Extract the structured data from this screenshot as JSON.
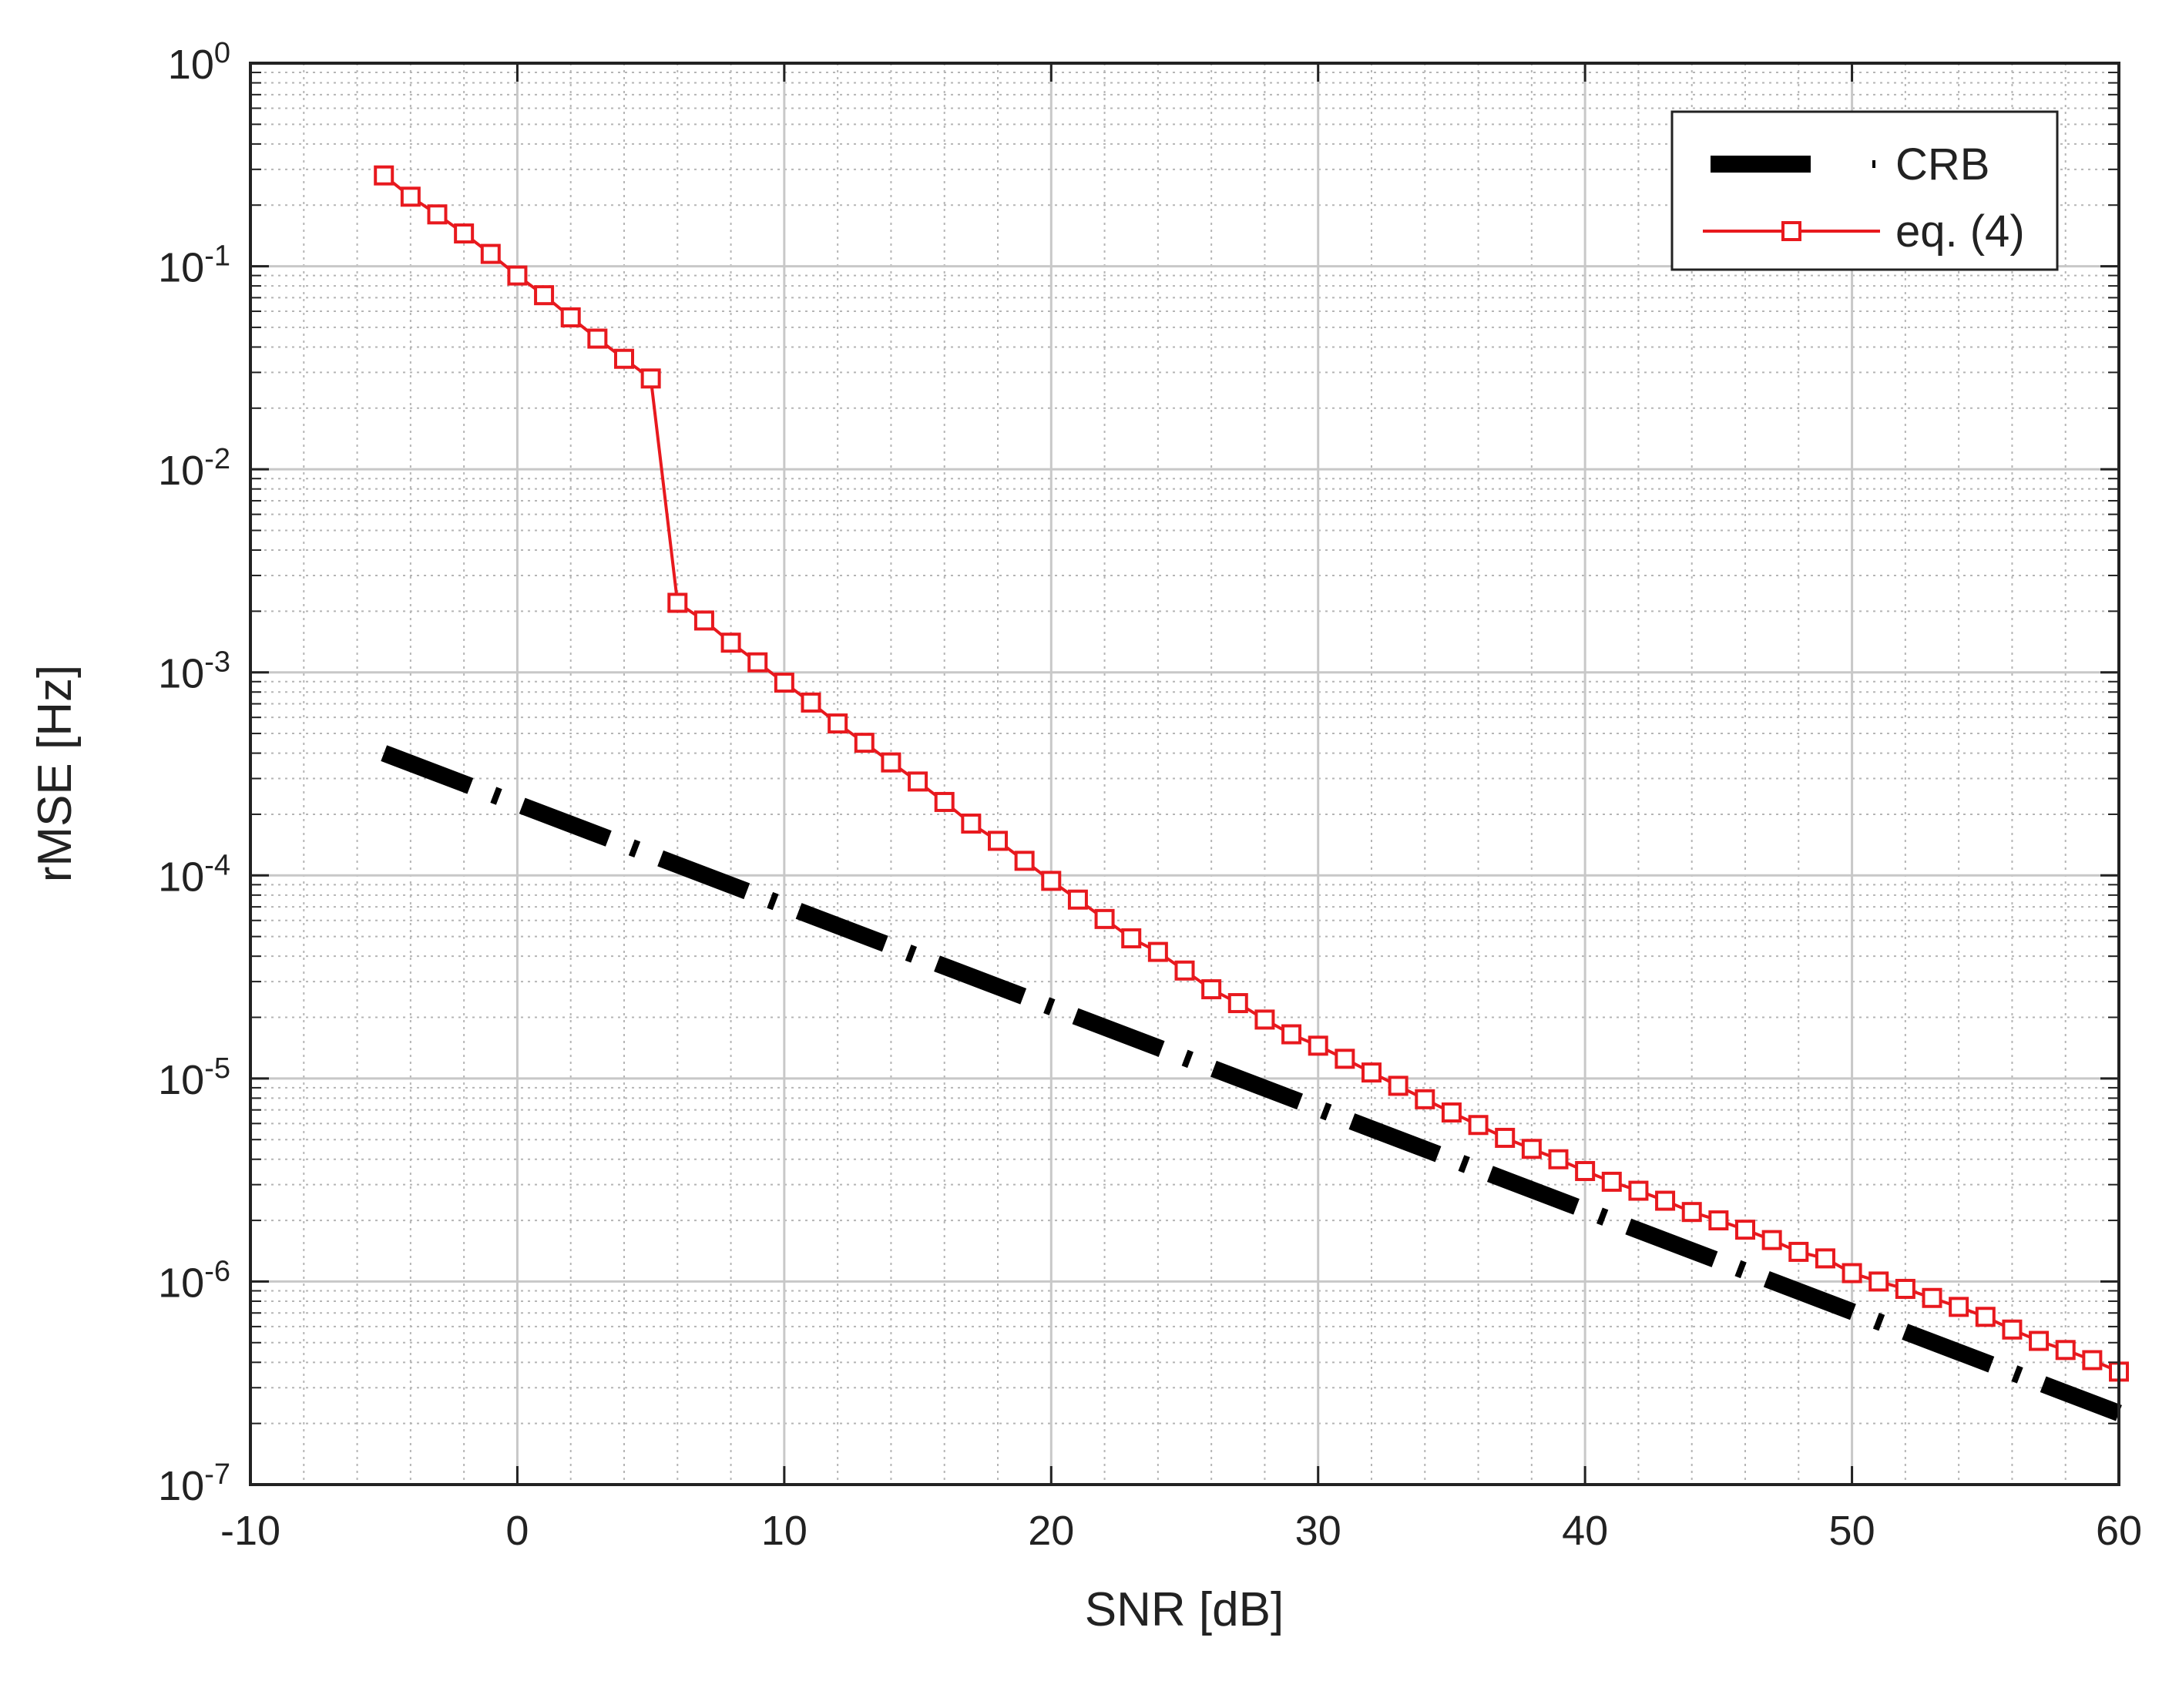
{
  "chart_data": {
    "type": "line",
    "title": "",
    "xlabel": "SNR [dB]",
    "ylabel": "rMSE [Hz]",
    "xlim": [
      -10,
      60
    ],
    "ylim": [
      1e-07,
      1
    ],
    "yscale": "log",
    "grid": true,
    "minor_grid": true,
    "legend_position": "top-right",
    "x_ticks": [
      {
        "value": -10,
        "label": "-10"
      },
      {
        "value": 0,
        "label": "0"
      },
      {
        "value": 10,
        "label": "10"
      },
      {
        "value": 20,
        "label": "20"
      },
      {
        "value": 30,
        "label": "30"
      },
      {
        "value": 40,
        "label": "40"
      },
      {
        "value": 50,
        "label": "50"
      },
      {
        "value": 60,
        "label": "60"
      }
    ],
    "y_ticks": [
      {
        "value": 1,
        "base": "10",
        "exp": "0"
      },
      {
        "value": 0.1,
        "base": "10",
        "exp": "-1"
      },
      {
        "value": 0.01,
        "base": "10",
        "exp": "-2"
      },
      {
        "value": 0.001,
        "base": "10",
        "exp": "-3"
      },
      {
        "value": 0.0001,
        "base": "10",
        "exp": "-4"
      },
      {
        "value": 1e-05,
        "base": "10",
        "exp": "-5"
      },
      {
        "value": 1e-06,
        "base": "10",
        "exp": "-6"
      },
      {
        "value": 1e-07,
        "base": "10",
        "exp": "-7"
      }
    ],
    "series": [
      {
        "name": "CRB",
        "color": "#000000",
        "style": "dash-dot",
        "marker": "none",
        "x": [
          -5,
          60
        ],
        "y": [
          0.0004,
          2.25e-07
        ]
      },
      {
        "name": "eq. (4)",
        "color": "#e8191e",
        "style": "solid",
        "marker": "square",
        "x": [
          -5,
          -4,
          -3,
          -2,
          -1,
          0,
          1,
          2,
          3,
          4,
          5,
          6,
          7,
          8,
          9,
          10,
          11,
          12,
          13,
          14,
          15,
          16,
          17,
          18,
          19,
          20,
          21,
          22,
          23,
          24,
          25,
          26,
          27,
          28,
          29,
          30,
          31,
          32,
          33,
          34,
          35,
          36,
          37,
          38,
          39,
          40,
          41,
          42,
          43,
          44,
          45,
          46,
          47,
          48,
          49,
          50,
          51,
          52,
          53,
          54,
          55,
          56,
          57,
          58,
          59,
          60
        ],
        "y": [
          0.28,
          0.22,
          0.18,
          0.145,
          0.115,
          0.09,
          0.072,
          0.056,
          0.044,
          0.035,
          0.028,
          0.0022,
          0.0018,
          0.0014,
          0.00112,
          0.00089,
          0.00071,
          0.00056,
          0.00045,
          0.00036,
          0.00029,
          0.00023,
          0.00018,
          0.000148,
          0.000118,
          9.4e-05,
          7.6e-05,
          6.1e-05,
          4.9e-05,
          4.2e-05,
          3.4e-05,
          2.75e-05,
          2.35e-05,
          1.95e-05,
          1.65e-05,
          1.45e-05,
          1.25e-05,
          1.07e-05,
          9.2e-06,
          7.9e-06,
          6.8e-06,
          5.9e-06,
          5.1e-06,
          4.5e-06,
          4e-06,
          3.5e-06,
          3.1e-06,
          2.8e-06,
          2.5e-06,
          2.2e-06,
          2e-06,
          1.8e-06,
          1.6e-06,
          1.4e-06,
          1.3e-06,
          1.1e-06,
          1e-06,
          9.2e-07,
          8.3e-07,
          7.5e-07,
          6.7e-07,
          5.8e-07,
          5.1e-07,
          4.6e-07,
          4.1e-07,
          3.6e-07
        ]
      }
    ]
  }
}
